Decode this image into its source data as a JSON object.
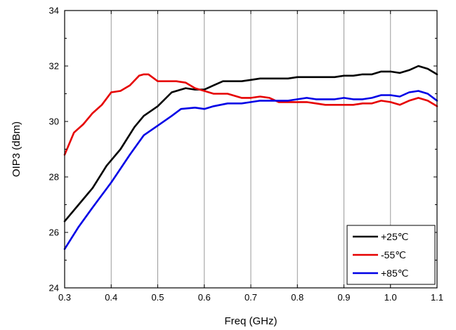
{
  "chart_data": {
    "type": "line",
    "title": "",
    "xlabel": "Freq (GHz)",
    "ylabel": "OIP3 (dBm)",
    "xlim": [
      0.3,
      1.1
    ],
    "ylim": [
      24,
      34
    ],
    "xticks": [
      "0.3",
      "0.4",
      "0.5",
      "0.6",
      "0.7",
      "0.8",
      "0.9",
      "1.0",
      "1.1"
    ],
    "yticks": [
      "24",
      "26",
      "28",
      "30",
      "32",
      "34"
    ],
    "grid": "vertical",
    "legend_position": "bottom-right",
    "series": [
      {
        "name": "+25℃",
        "color": "#000000",
        "x": [
          0.3,
          0.33,
          0.36,
          0.39,
          0.42,
          0.45,
          0.47,
          0.5,
          0.53,
          0.56,
          0.58,
          0.6,
          0.62,
          0.64,
          0.66,
          0.68,
          0.7,
          0.72,
          0.74,
          0.76,
          0.78,
          0.8,
          0.82,
          0.84,
          0.86,
          0.88,
          0.9,
          0.92,
          0.94,
          0.96,
          0.98,
          1.0,
          1.02,
          1.04,
          1.06,
          1.08,
          1.1
        ],
        "y": [
          26.4,
          27.0,
          27.6,
          28.4,
          29.0,
          29.8,
          30.2,
          30.55,
          31.05,
          31.2,
          31.15,
          31.15,
          31.3,
          31.45,
          31.45,
          31.45,
          31.5,
          31.55,
          31.55,
          31.55,
          31.55,
          31.6,
          31.6,
          31.6,
          31.6,
          31.6,
          31.65,
          31.65,
          31.7,
          31.7,
          31.8,
          31.8,
          31.75,
          31.85,
          32.0,
          31.9,
          31.7
        ]
      },
      {
        "name": "-55℃",
        "color": "#e60000",
        "x": [
          0.3,
          0.32,
          0.34,
          0.36,
          0.38,
          0.4,
          0.42,
          0.44,
          0.46,
          0.47,
          0.48,
          0.5,
          0.52,
          0.54,
          0.56,
          0.58,
          0.6,
          0.62,
          0.65,
          0.68,
          0.7,
          0.72,
          0.74,
          0.76,
          0.78,
          0.8,
          0.82,
          0.84,
          0.86,
          0.88,
          0.9,
          0.92,
          0.94,
          0.96,
          0.98,
          1.0,
          1.02,
          1.04,
          1.06,
          1.08,
          1.1
        ],
        "y": [
          28.8,
          29.6,
          29.9,
          30.3,
          30.6,
          31.05,
          31.1,
          31.3,
          31.65,
          31.7,
          31.7,
          31.45,
          31.45,
          31.45,
          31.4,
          31.2,
          31.1,
          31.0,
          31.0,
          30.85,
          30.85,
          30.9,
          30.85,
          30.7,
          30.7,
          30.7,
          30.7,
          30.65,
          30.6,
          30.6,
          30.6,
          30.6,
          30.65,
          30.65,
          30.75,
          30.7,
          30.6,
          30.75,
          30.85,
          30.75,
          30.55
        ]
      },
      {
        "name": "+85℃",
        "color": "#0000e6",
        "x": [
          0.3,
          0.33,
          0.36,
          0.4,
          0.44,
          0.47,
          0.5,
          0.53,
          0.55,
          0.58,
          0.6,
          0.62,
          0.65,
          0.68,
          0.7,
          0.72,
          0.75,
          0.78,
          0.8,
          0.82,
          0.84,
          0.86,
          0.88,
          0.9,
          0.92,
          0.94,
          0.96,
          0.98,
          1.0,
          1.02,
          1.04,
          1.06,
          1.08,
          1.1
        ],
        "y": [
          25.4,
          26.2,
          26.9,
          27.8,
          28.8,
          29.5,
          29.85,
          30.2,
          30.45,
          30.5,
          30.45,
          30.55,
          30.65,
          30.65,
          30.7,
          30.75,
          30.75,
          30.75,
          30.8,
          30.85,
          30.8,
          30.8,
          30.8,
          30.85,
          30.8,
          30.8,
          30.85,
          30.95,
          30.95,
          30.9,
          31.05,
          31.1,
          31.0,
          30.75
        ]
      }
    ]
  }
}
